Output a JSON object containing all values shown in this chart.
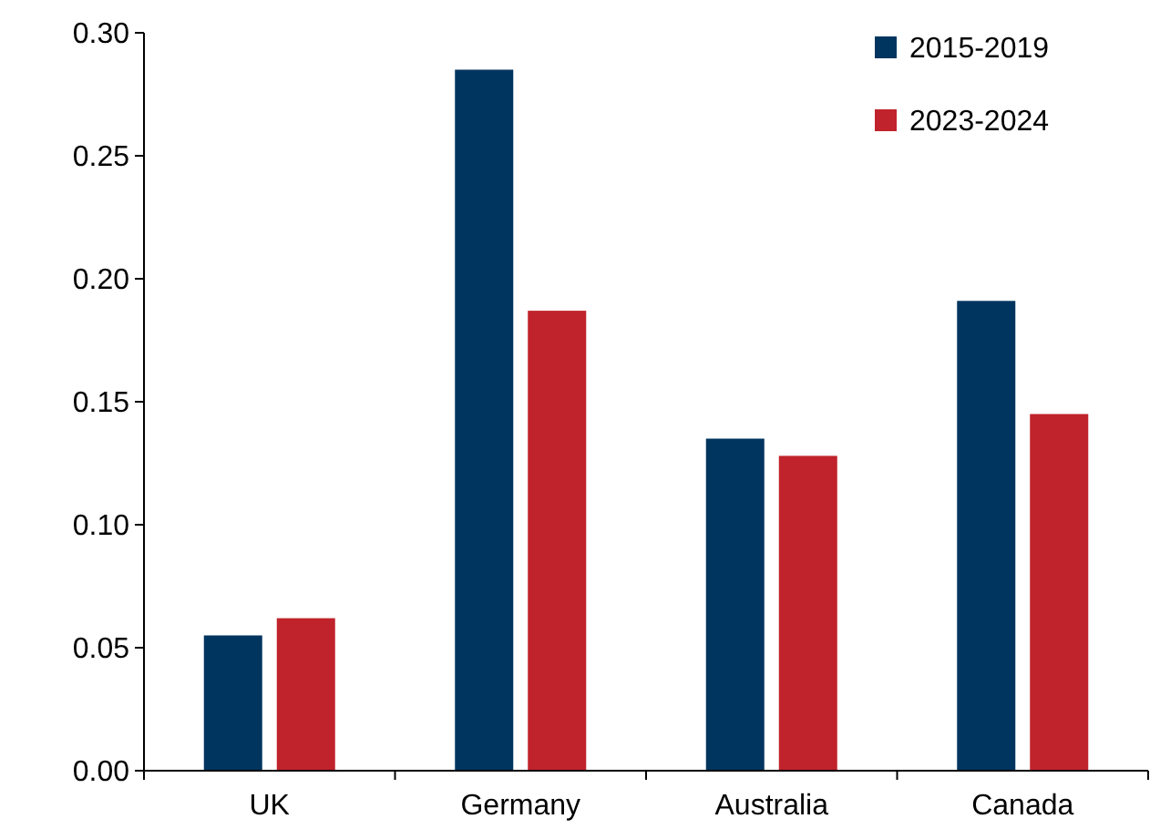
{
  "chart_data": {
    "type": "bar",
    "categories": [
      "UK",
      "Germany",
      "Australia",
      "Canada"
    ],
    "series": [
      {
        "name": "2015-2019",
        "color": "#00355f",
        "values": [
          0.055,
          0.285,
          0.135,
          0.191
        ]
      },
      {
        "name": "2023-2024",
        "color": "#c0232b",
        "values": [
          0.062,
          0.187,
          0.128,
          0.145
        ]
      }
    ],
    "ylim": [
      0,
      0.3
    ],
    "yticks": [
      {
        "value": 0,
        "label": "0.00"
      },
      {
        "value": 0.05,
        "label": "0.05"
      },
      {
        "value": 0.1,
        "label": "0.10"
      },
      {
        "value": 0.15,
        "label": "0.15"
      },
      {
        "value": 0.2,
        "label": "0.20"
      },
      {
        "value": 0.25,
        "label": "0.25"
      },
      {
        "value": 0.3,
        "label": "0.30"
      }
    ],
    "grid": false,
    "legend": "top right"
  }
}
